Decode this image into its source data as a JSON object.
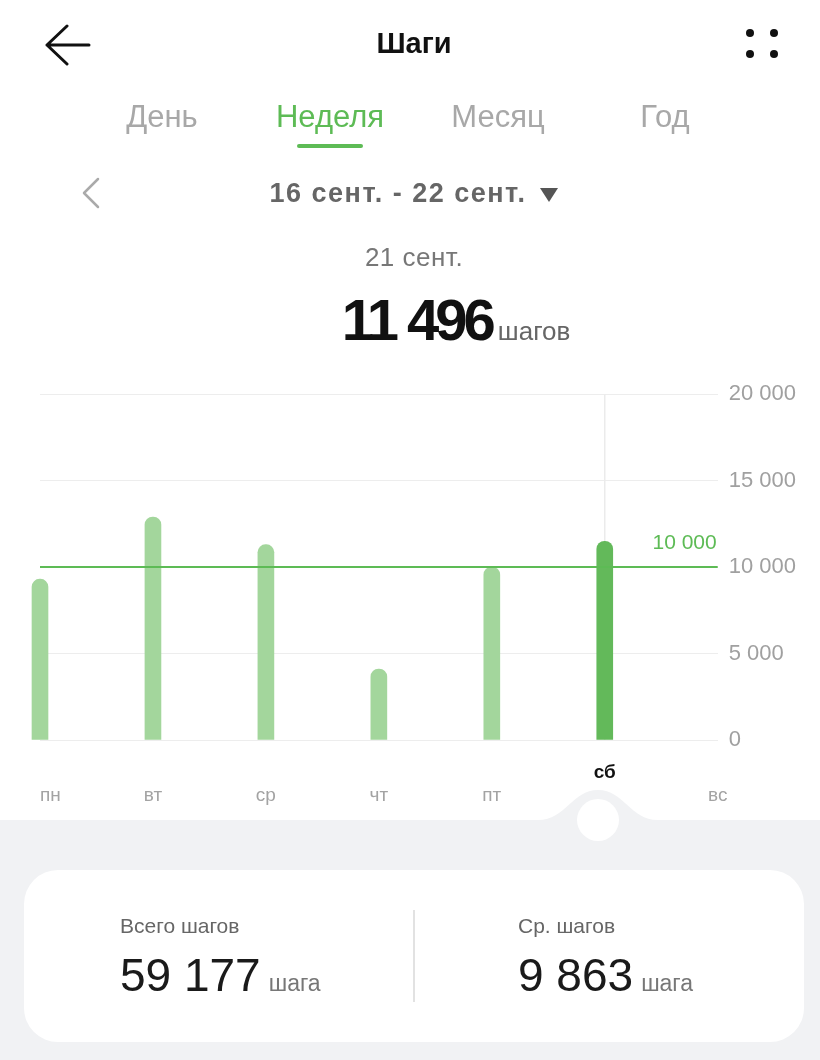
{
  "chart_data": {
    "type": "bar",
    "title": "Шаги",
    "subtitle": "16 сент. - 22 сент.",
    "categories": [
      "пн",
      "вт",
      "ср",
      "чт",
      "пт",
      "сб",
      "вс"
    ],
    "values": [
      9300,
      12900,
      11300,
      4100,
      10000,
      11496,
      null
    ],
    "colors": [
      "#a3d69c",
      "#a3d69c",
      "#a3d69c",
      "#a3d69c",
      "#a3d69c",
      "#63b95a",
      "#a3d69c"
    ],
    "ylim": [
      0,
      20000
    ],
    "yticks": [
      0,
      {
        "value": 5000,
        "label": "5 000"
      },
      {
        "value": 10000,
        "label": "10 000"
      },
      {
        "value": 15000,
        "label": "15 000"
      },
      {
        "value": 20000,
        "label": "20 000"
      }
    ],
    "grid": "y",
    "legend": false,
    "ref_lines": [
      {
        "axis": "x",
        "value": "сб",
        "color": "#ebebeb"
      },
      {
        "axis": "y",
        "value": 10000,
        "label": "10 000",
        "color": "#5dbb55"
      }
    ],
    "annotations": [
      "День",
      "Неделя",
      "Месяц",
      "Год",
      "21 сент.",
      "11 496",
      "шагов",
      "Всего шагов",
      "59 177",
      "шага",
      "Ср. шагов",
      "9 863",
      "шага"
    ]
  }
}
